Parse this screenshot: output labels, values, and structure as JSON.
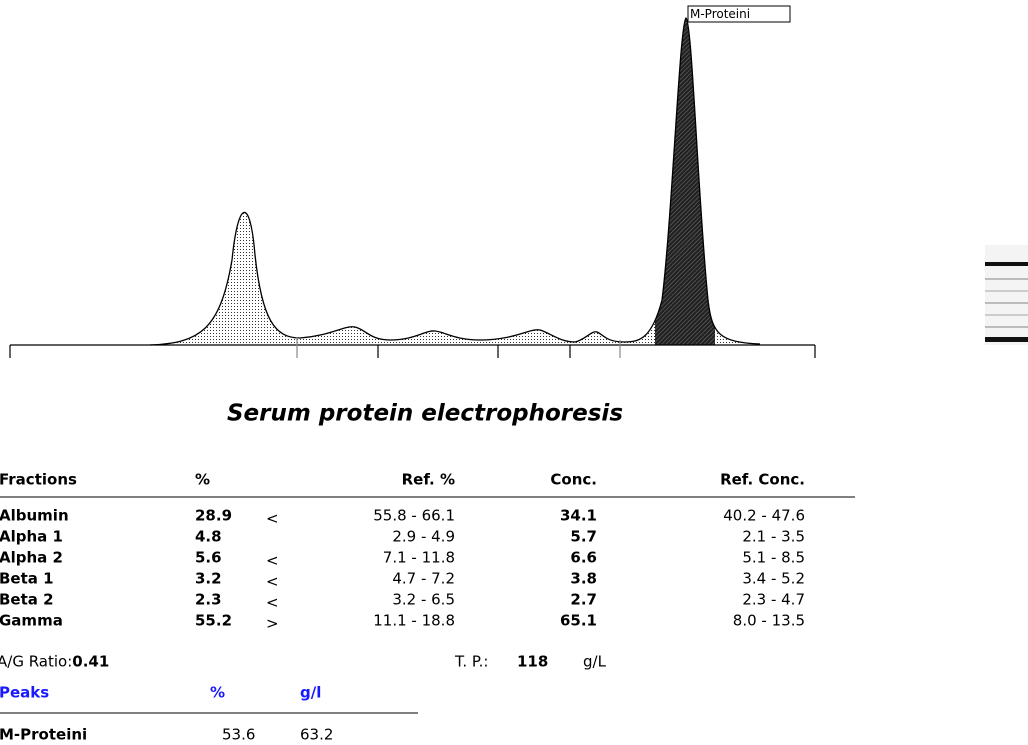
{
  "peak_label": "M-Proteini",
  "title": "Serum protein electrophoresis",
  "table": {
    "headers": [
      "Fractions",
      "%",
      "Ref. %",
      "Conc.",
      "Ref. Conc."
    ],
    "rows": [
      {
        "name": "Albumin",
        "percent": "28.9",
        "flag": "<",
        "ref_percent": "55.8 - 66.1",
        "conc": "34.1",
        "ref_conc": "40.2 - 47.6"
      },
      {
        "name": "Alpha 1",
        "percent": "4.8",
        "ref_percent": "2.9 - 4.9",
        "conc": "5.7",
        "ref_conc": "2.1 - 3.5"
      },
      {
        "name": "Alpha 2",
        "percent": "5.6",
        "flag": "<",
        "ref_percent": "7.1 - 11.8",
        "conc": "6.6",
        "ref_conc": "5.1 - 8.5"
      },
      {
        "name": "Beta 1",
        "percent": "3.2",
        "flag": "<",
        "ref_percent": "4.7 - 7.2",
        "conc": "3.8",
        "ref_conc": "3.4 - 5.2"
      },
      {
        "name": "Beta 2",
        "percent": "2.3",
        "flag": "<",
        "ref_percent": "3.2 - 6.5",
        "conc": "2.7",
        "ref_conc": "2.3 - 4.7"
      },
      {
        "name": "Gamma",
        "percent": "55.2",
        "flag": ">",
        "ref_percent": "11.1 - 18.8",
        "conc": "65.1",
        "ref_conc": "8.0 - 13.5"
      }
    ]
  },
  "ag_ratio": {
    "label": "A/G Ratio:",
    "value": "0.41"
  },
  "total_protein": {
    "label": "T. P.:",
    "value": "118",
    "unit": "g/L"
  },
  "peaks": {
    "headers": [
      "Peaks",
      "%",
      "g/l"
    ],
    "rows": [
      {
        "name": "M-Proteini",
        "percent": "53.6",
        "gl": "63.2"
      }
    ]
  }
}
